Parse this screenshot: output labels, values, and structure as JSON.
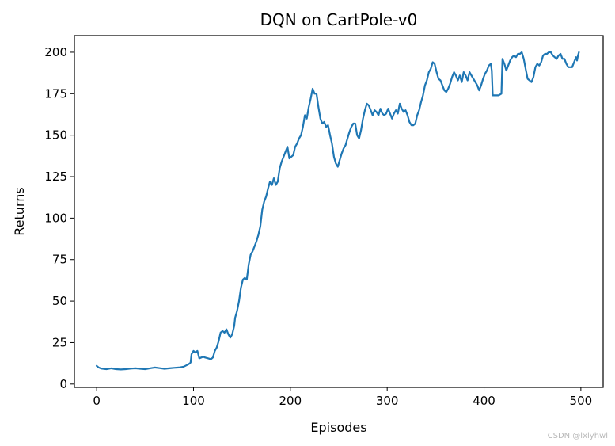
{
  "chart_data": {
    "type": "line",
    "title": "DQN on CartPole-v0",
    "xlabel": "Episodes",
    "ylabel": "Returns",
    "xlim": [
      -23,
      523
    ],
    "ylim": [
      -2,
      210
    ],
    "xticks": [
      0,
      100,
      200,
      300,
      400,
      500
    ],
    "yticks": [
      0,
      25,
      50,
      75,
      100,
      125,
      150,
      175,
      200
    ],
    "grid": false,
    "legend": "none",
    "series": [
      {
        "color": "#1f77b4",
        "points": [
          [
            0,
            11
          ],
          [
            2,
            10
          ],
          [
            5,
            9.3
          ],
          [
            10,
            9
          ],
          [
            15,
            9.5
          ],
          [
            20,
            9
          ],
          [
            25,
            8.8
          ],
          [
            30,
            9
          ],
          [
            35,
            9.3
          ],
          [
            40,
            9.5
          ],
          [
            45,
            9.2
          ],
          [
            50,
            9
          ],
          [
            55,
            9.5
          ],
          [
            60,
            10
          ],
          [
            65,
            9.6
          ],
          [
            70,
            9.2
          ],
          [
            75,
            9.5
          ],
          [
            80,
            9.8
          ],
          [
            85,
            10
          ],
          [
            90,
            10.5
          ],
          [
            95,
            12
          ],
          [
            97,
            13
          ],
          [
            98,
            18
          ],
          [
            100,
            20
          ],
          [
            102,
            19
          ],
          [
            104,
            20
          ],
          [
            106,
            15.5
          ],
          [
            108,
            16
          ],
          [
            110,
            16.5
          ],
          [
            112,
            16
          ],
          [
            115,
            15.5
          ],
          [
            118,
            15
          ],
          [
            120,
            16
          ],
          [
            122,
            20
          ],
          [
            124,
            22
          ],
          [
            126,
            26
          ],
          [
            128,
            31
          ],
          [
            130,
            32
          ],
          [
            132,
            31
          ],
          [
            134,
            33
          ],
          [
            136,
            30
          ],
          [
            138,
            28
          ],
          [
            140,
            30
          ],
          [
            142,
            35
          ],
          [
            143,
            40
          ],
          [
            145,
            44
          ],
          [
            147,
            50
          ],
          [
            149,
            58
          ],
          [
            151,
            63
          ],
          [
            153,
            64
          ],
          [
            155,
            63
          ],
          [
            157,
            72
          ],
          [
            159,
            78
          ],
          [
            161,
            80
          ],
          [
            163,
            83
          ],
          [
            165,
            86
          ],
          [
            167,
            90
          ],
          [
            169,
            95
          ],
          [
            171,
            105
          ],
          [
            173,
            110
          ],
          [
            175,
            113
          ],
          [
            177,
            118
          ],
          [
            179,
            122
          ],
          [
            181,
            120
          ],
          [
            183,
            124
          ],
          [
            185,
            120
          ],
          [
            187,
            122
          ],
          [
            189,
            130
          ],
          [
            191,
            134
          ],
          [
            193,
            137
          ],
          [
            195,
            140
          ],
          [
            197,
            143
          ],
          [
            199,
            136
          ],
          [
            201,
            137
          ],
          [
            203,
            138
          ],
          [
            205,
            143
          ],
          [
            207,
            145
          ],
          [
            209,
            148
          ],
          [
            211,
            150
          ],
          [
            213,
            155
          ],
          [
            215,
            162
          ],
          [
            217,
            160
          ],
          [
            219,
            167
          ],
          [
            221,
            172
          ],
          [
            223,
            178
          ],
          [
            225,
            175
          ],
          [
            227,
            175
          ],
          [
            229,
            167
          ],
          [
            231,
            160
          ],
          [
            233,
            157
          ],
          [
            235,
            158
          ],
          [
            237,
            155
          ],
          [
            239,
            156
          ],
          [
            241,
            150
          ],
          [
            243,
            145
          ],
          [
            245,
            137
          ],
          [
            247,
            133
          ],
          [
            249,
            131
          ],
          [
            251,
            135
          ],
          [
            253,
            139
          ],
          [
            255,
            142
          ],
          [
            257,
            144
          ],
          [
            259,
            148
          ],
          [
            261,
            152
          ],
          [
            263,
            155
          ],
          [
            265,
            157
          ],
          [
            267,
            157
          ],
          [
            269,
            150
          ],
          [
            271,
            148
          ],
          [
            273,
            153
          ],
          [
            275,
            160
          ],
          [
            277,
            165
          ],
          [
            279,
            169
          ],
          [
            281,
            168
          ],
          [
            283,
            165
          ],
          [
            285,
            162
          ],
          [
            287,
            165
          ],
          [
            289,
            164
          ],
          [
            291,
            162
          ],
          [
            293,
            166
          ],
          [
            295,
            163
          ],
          [
            297,
            162
          ],
          [
            299,
            163
          ],
          [
            301,
            166
          ],
          [
            303,
            163
          ],
          [
            305,
            160
          ],
          [
            307,
            163
          ],
          [
            309,
            165
          ],
          [
            311,
            163
          ],
          [
            313,
            169
          ],
          [
            315,
            166
          ],
          [
            317,
            164
          ],
          [
            319,
            165
          ],
          [
            321,
            162
          ],
          [
            323,
            158
          ],
          [
            325,
            156
          ],
          [
            327,
            156
          ],
          [
            329,
            157
          ],
          [
            331,
            162
          ],
          [
            333,
            165
          ],
          [
            335,
            170
          ],
          [
            337,
            174
          ],
          [
            339,
            180
          ],
          [
            341,
            183
          ],
          [
            343,
            188
          ],
          [
            345,
            190
          ],
          [
            347,
            194
          ],
          [
            349,
            193
          ],
          [
            351,
            188
          ],
          [
            353,
            184
          ],
          [
            355,
            183
          ],
          [
            357,
            180
          ],
          [
            359,
            177
          ],
          [
            361,
            176
          ],
          [
            363,
            178
          ],
          [
            365,
            181
          ],
          [
            367,
            185
          ],
          [
            369,
            188
          ],
          [
            371,
            186
          ],
          [
            373,
            183
          ],
          [
            375,
            186
          ],
          [
            377,
            182
          ],
          [
            379,
            188
          ],
          [
            381,
            186
          ],
          [
            383,
            183
          ],
          [
            385,
            188
          ],
          [
            387,
            186
          ],
          [
            389,
            184
          ],
          [
            391,
            182
          ],
          [
            393,
            180
          ],
          [
            395,
            177
          ],
          [
            397,
            180
          ],
          [
            399,
            184
          ],
          [
            401,
            187
          ],
          [
            403,
            189
          ],
          [
            405,
            192
          ],
          [
            407,
            193
          ],
          [
            408,
            189
          ],
          [
            409,
            174
          ],
          [
            412,
            174
          ],
          [
            415,
            174
          ],
          [
            418,
            175
          ],
          [
            419,
            196
          ],
          [
            421,
            193
          ],
          [
            423,
            189
          ],
          [
            425,
            192
          ],
          [
            427,
            195
          ],
          [
            429,
            197
          ],
          [
            431,
            198
          ],
          [
            433,
            197
          ],
          [
            435,
            199
          ],
          [
            437,
            199
          ],
          [
            439,
            200
          ],
          [
            441,
            196
          ],
          [
            443,
            190
          ],
          [
            445,
            184
          ],
          [
            447,
            183
          ],
          [
            449,
            182
          ],
          [
            451,
            185
          ],
          [
            453,
            191
          ],
          [
            455,
            193
          ],
          [
            457,
            192
          ],
          [
            459,
            194
          ],
          [
            461,
            198
          ],
          [
            463,
            199
          ],
          [
            465,
            199
          ],
          [
            467,
            200
          ],
          [
            469,
            200
          ],
          [
            471,
            198
          ],
          [
            473,
            197
          ],
          [
            475,
            196
          ],
          [
            477,
            198
          ],
          [
            479,
            199
          ],
          [
            481,
            196
          ],
          [
            483,
            196
          ],
          [
            485,
            193
          ],
          [
            487,
            191
          ],
          [
            489,
            191
          ],
          [
            491,
            191
          ],
          [
            493,
            194
          ],
          [
            495,
            197
          ],
          [
            496,
            195
          ],
          [
            497,
            198
          ],
          [
            498,
            200
          ]
        ]
      }
    ]
  },
  "watermark": "CSDN @lxlyhwl"
}
